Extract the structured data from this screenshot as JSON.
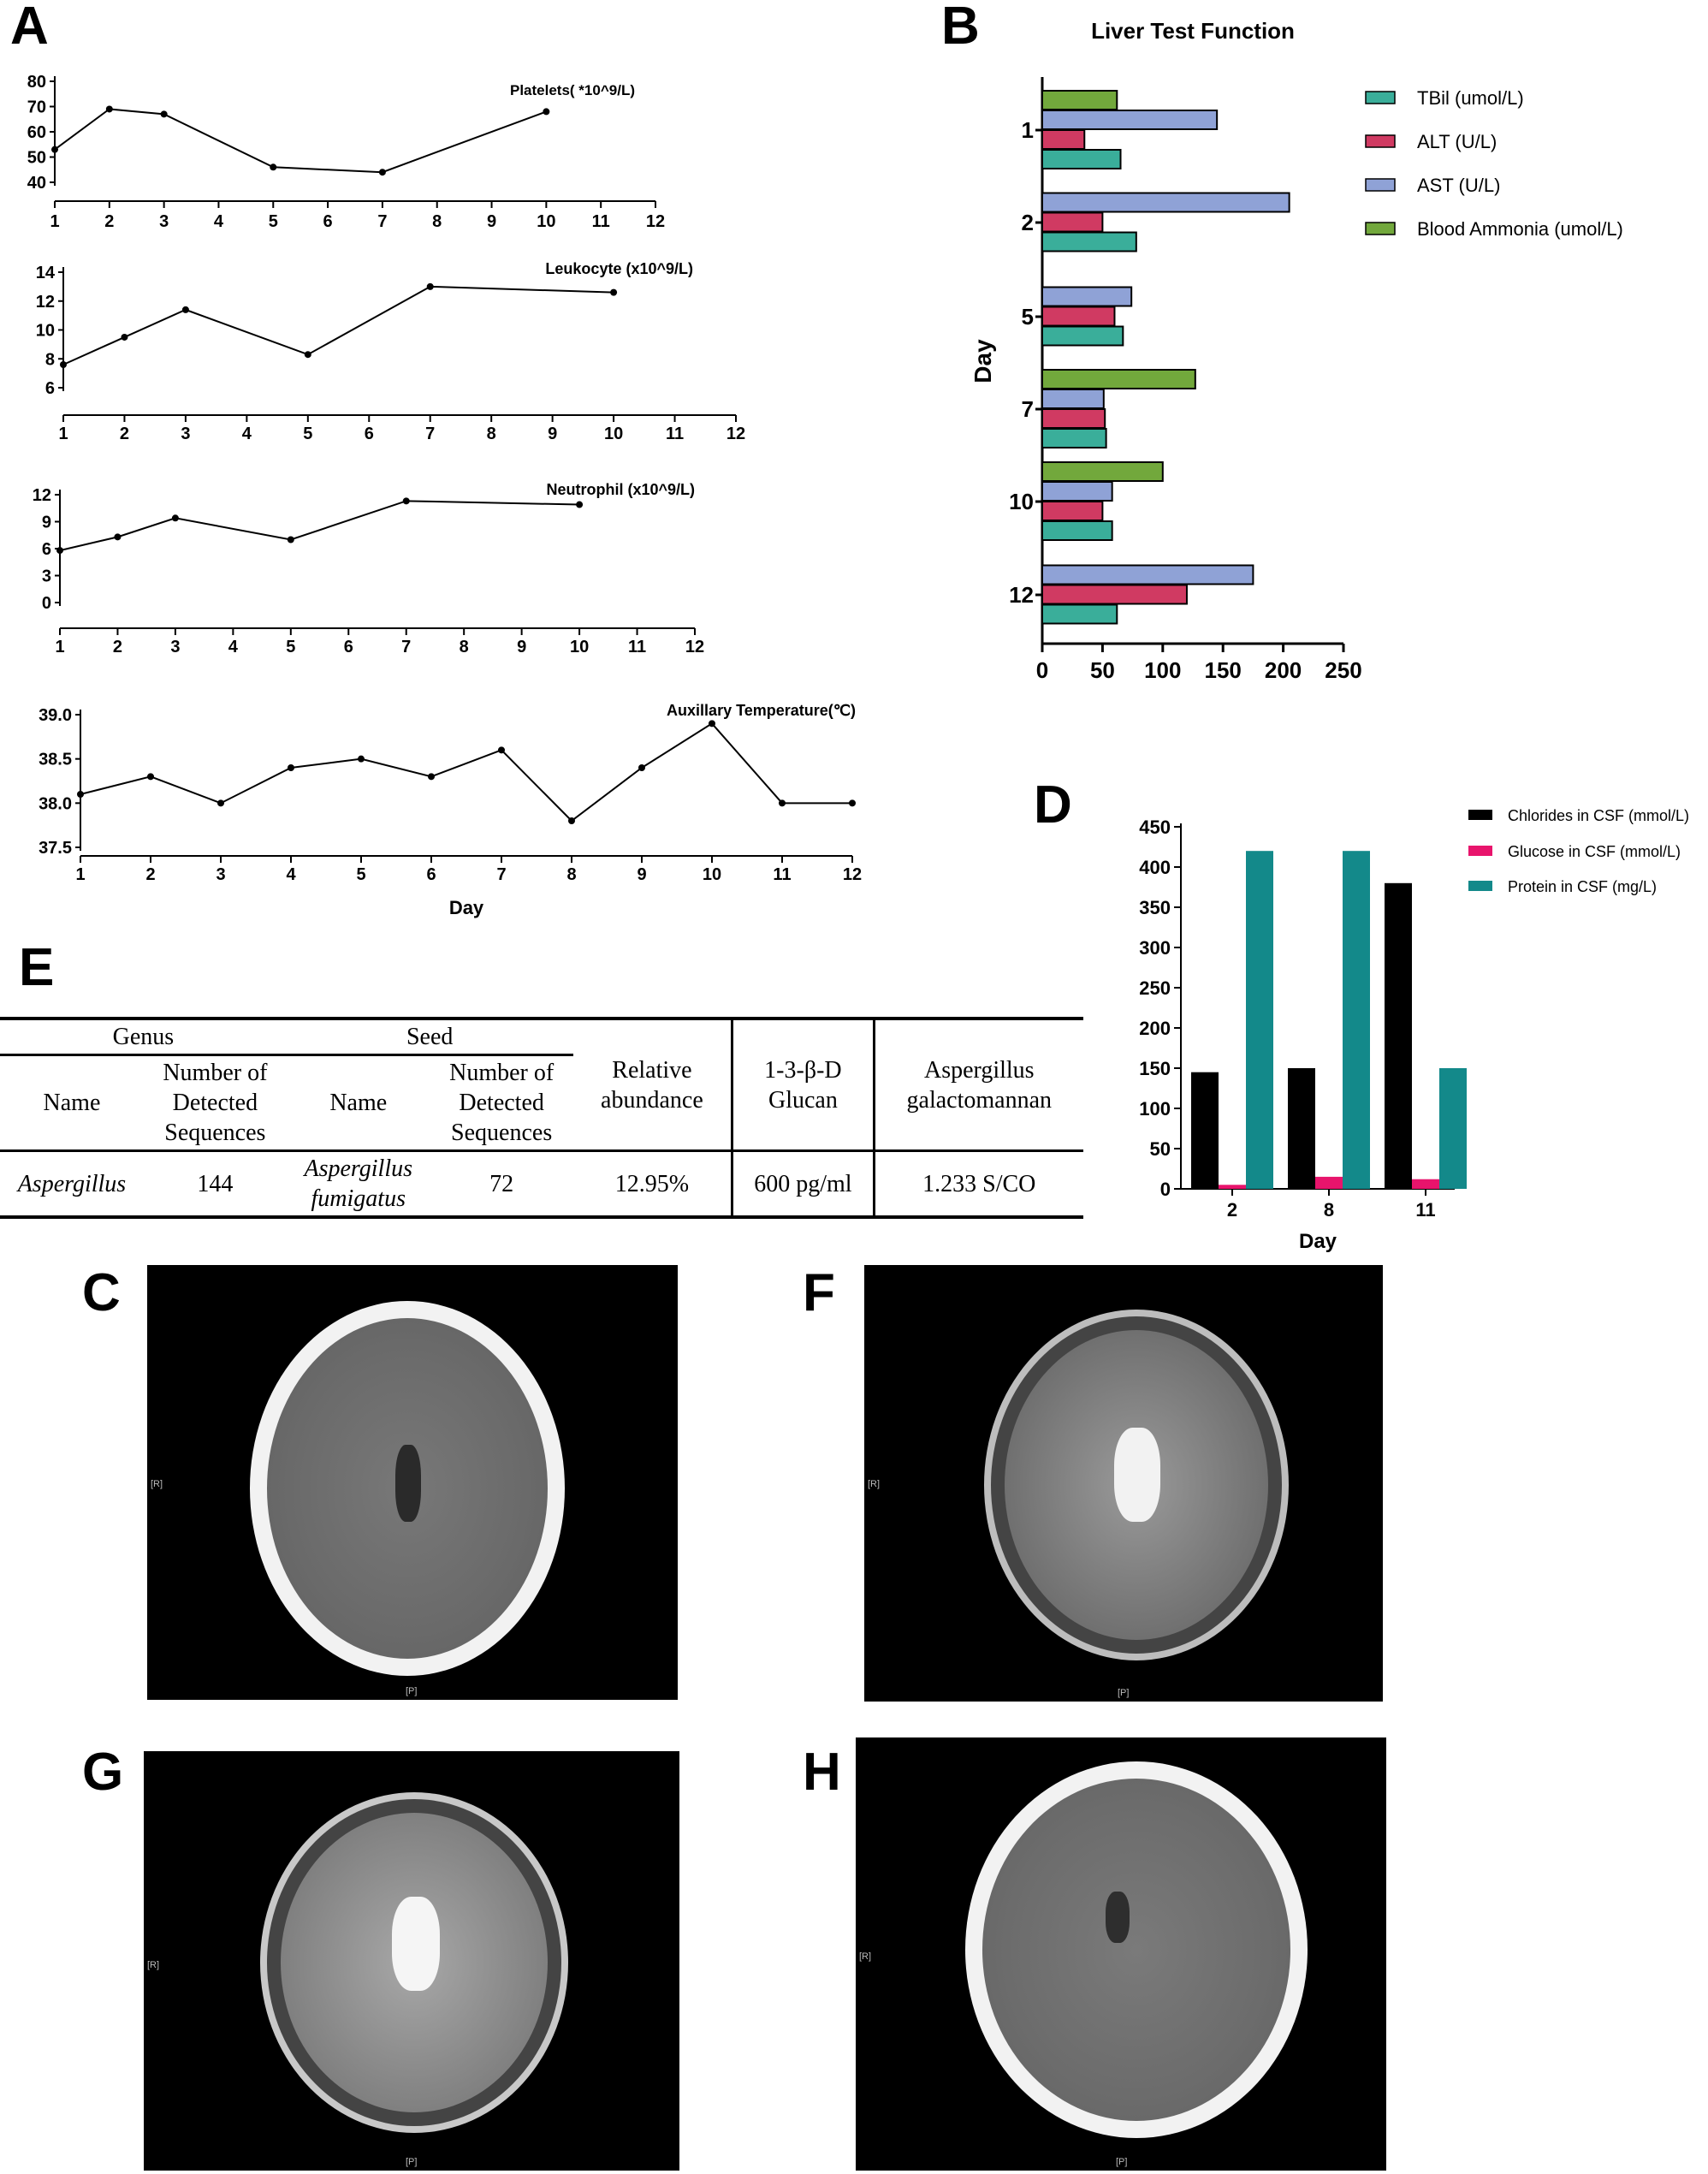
{
  "panels": {
    "A": "A",
    "B": "B",
    "C": "C",
    "D": "D",
    "E": "E",
    "F": "F",
    "G": "G",
    "H": "H"
  },
  "chart_data": [
    {
      "id": "A1",
      "type": "line",
      "title": "Platelets( *10^9/L)",
      "x": [
        1,
        2,
        3,
        5,
        7,
        10
      ],
      "y": [
        53,
        69,
        67,
        46,
        44,
        68
      ],
      "xticks": [
        1,
        2,
        3,
        4,
        5,
        6,
        7,
        8,
        9,
        10,
        11,
        12
      ],
      "yticks": [
        40,
        50,
        60,
        70,
        80
      ],
      "ylim": [
        40,
        80
      ]
    },
    {
      "id": "A2",
      "type": "line",
      "title": "Leukocyte (x10^9/L)",
      "x": [
        1,
        2,
        3,
        5,
        7,
        10
      ],
      "y": [
        7.6,
        9.5,
        11.4,
        8.3,
        13.0,
        12.6
      ],
      "xticks": [
        1,
        2,
        3,
        4,
        5,
        6,
        7,
        8,
        9,
        10,
        11,
        12
      ],
      "yticks": [
        6,
        8,
        10,
        12,
        14
      ],
      "ylim": [
        6,
        14
      ]
    },
    {
      "id": "A3",
      "type": "line",
      "title": "Neutrophil (x10^9/L)",
      "x": [
        1,
        2,
        3,
        5,
        7,
        10
      ],
      "y": [
        5.8,
        7.3,
        9.4,
        7.0,
        11.3,
        10.9
      ],
      "xticks": [
        1,
        2,
        3,
        4,
        5,
        6,
        7,
        8,
        9,
        10,
        11,
        12
      ],
      "yticks": [
        0,
        3,
        6,
        9,
        12
      ],
      "ylim": [
        0,
        12
      ]
    },
    {
      "id": "A4",
      "type": "line",
      "title": "Auxillary Temperature(℃)",
      "xlabel": "Day",
      "x": [
        1,
        2,
        3,
        4,
        5,
        6,
        7,
        8,
        9,
        10,
        11,
        12
      ],
      "y": [
        38.1,
        38.3,
        38.0,
        38.4,
        38.5,
        38.3,
        38.6,
        37.8,
        38.4,
        38.9,
        38.0,
        38.0
      ],
      "xticks": [
        1,
        2,
        3,
        4,
        5,
        6,
        7,
        8,
        9,
        10,
        11,
        12
      ],
      "yticks": [
        "37.5",
        "38.0",
        "38.5",
        "39.0"
      ],
      "ylim": [
        37.5,
        39.0
      ]
    },
    {
      "id": "B",
      "type": "bar",
      "orientation": "horizontal",
      "title": "Liver Test Function",
      "ylabel": "Day",
      "categories": [
        "1",
        "2",
        "5",
        "7",
        "10",
        "12"
      ],
      "xticks": [
        0,
        50,
        100,
        150,
        200,
        250
      ],
      "xlim": [
        0,
        250
      ],
      "legend_position": "right",
      "series": [
        {
          "name": "TBil (umol/L)",
          "color": "#3aae9a",
          "values": [
            65,
            78,
            67,
            53,
            58,
            62
          ]
        },
        {
          "name": "ALT (U/L)",
          "color": "#d03a62",
          "values": [
            35,
            50,
            60,
            52,
            50,
            120
          ]
        },
        {
          "name": "AST (U/L)",
          "color": "#8fa2d6",
          "values": [
            145,
            205,
            74,
            51,
            58,
            175
          ]
        },
        {
          "name": "Blood Ammonia (umol/L)",
          "color": "#72a83c",
          "values": [
            62,
            null,
            null,
            127,
            100,
            null
          ]
        }
      ]
    },
    {
      "id": "D",
      "type": "bar",
      "xlabel": "Day",
      "categories": [
        "2",
        "8",
        "11"
      ],
      "yticks": [
        0,
        50,
        100,
        150,
        200,
        250,
        300,
        350,
        400,
        450
      ],
      "ylim": [
        0,
        450
      ],
      "legend_position": "top-right",
      "series": [
        {
          "name": "Chlorides in CSF (mmol/L)",
          "color": "#000000",
          "values": [
            145,
            150,
            380
          ]
        },
        {
          "name": "Glucose in CSF (mmol/L)",
          "color": "#e8146c",
          "values": [
            5,
            15,
            12
          ]
        },
        {
          "name": "Protein in CSF (mg/L)",
          "color": "#13898a",
          "values": [
            420,
            420,
            150
          ]
        }
      ]
    }
  ],
  "table_e": {
    "genus_header": "Genus",
    "seed_header": "Seed",
    "name1": "Name",
    "num1": [
      "Number of",
      "Detected",
      "Sequences"
    ],
    "name2": "Name",
    "num2": [
      "Number of",
      "Detected",
      "Sequences"
    ],
    "relative": [
      "Relative",
      "abundance"
    ],
    "glucan": [
      "1-3-β-D",
      "Glucan"
    ],
    "galacto": [
      "Aspergillus",
      "galactomannan"
    ],
    "row": {
      "genus": "Aspergillus",
      "genus_count": "144",
      "seed_line1": "Aspergillus",
      "seed_line2": "fumigatus",
      "seed_count": "72",
      "abundance": "12.95%",
      "glucan": "600 pg/ml",
      "galacto": "1.233 S/CO"
    }
  },
  "scans": {
    "left_marker": "[R]",
    "bottom_marker": "[P]"
  }
}
